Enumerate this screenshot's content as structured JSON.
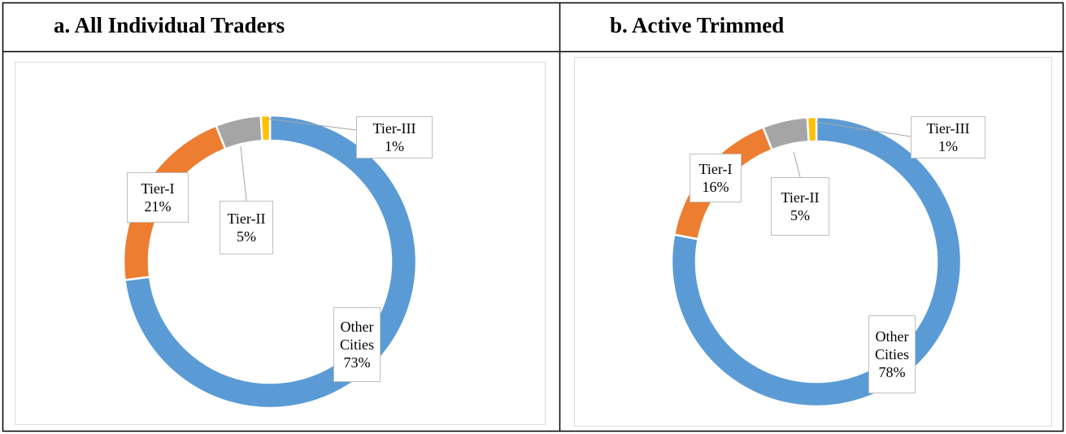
{
  "chart_data": [
    {
      "type": "pie",
      "title": "a. All Individual Traders",
      "categories": [
        "Other Cities",
        "Tier-I",
        "Tier-II",
        "Tier-III"
      ],
      "values": [
        73,
        21,
        5,
        1
      ],
      "value_labels": [
        "73%",
        "21%",
        "5%",
        "1%"
      ],
      "colors": [
        "#5b9bd5",
        "#ed7d31",
        "#a5a5a5",
        "#ffc000"
      ]
    },
    {
      "type": "pie",
      "title": "b. Active Trimmed",
      "categories": [
        "Other Cities",
        "Tier-I",
        "Tier-II",
        "Tier-III"
      ],
      "values": [
        78,
        16,
        5,
        1
      ],
      "value_labels": [
        "78%",
        "16%",
        "5%",
        "1%"
      ],
      "colors": [
        "#5b9bd5",
        "#ed7d31",
        "#a5a5a5",
        "#ffc000"
      ]
    }
  ]
}
